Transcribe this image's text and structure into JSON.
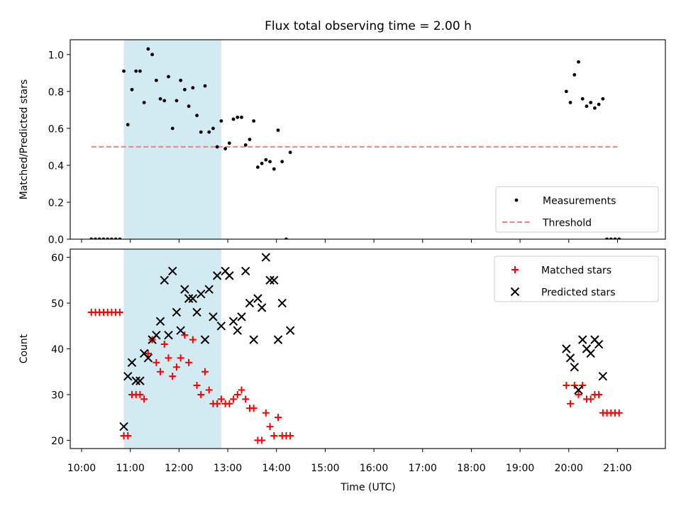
{
  "chart_data": {
    "title": "Flux total observing time = 2.00 h",
    "xlabel": "Time (UTC)",
    "x_ticks": [
      "10:00",
      "11:00",
      "12:00",
      "13:00",
      "14:00",
      "15:00",
      "16:00",
      "17:00",
      "18:00",
      "19:00",
      "20:00",
      "21:00"
    ],
    "xlim": [
      "09:46",
      "21:59"
    ],
    "highlight_span": [
      "10:52",
      "12:52"
    ],
    "colors": {
      "highlight": "#add8e6",
      "threshold": "#f08080",
      "matched": "#ff0000",
      "predicted": "#000000",
      "measurement": "#000000"
    },
    "panels": [
      {
        "type": "scatter",
        "ylabel": "Matched/Predicted stars",
        "ylim": [
          0,
          1.08
        ],
        "y_ticks": [
          "0.0",
          "0.2",
          "0.4",
          "0.6",
          "0.8",
          "1.0"
        ],
        "legend_position": "lower-right",
        "threshold": {
          "name": "Threshold",
          "y": 0.5,
          "x_range": [
            "10:12",
            "21:00"
          ]
        },
        "series": [
          {
            "name": "Measurements",
            "points": [
              [
                "10:12",
                0
              ],
              [
                "10:17",
                0
              ],
              [
                "10:22",
                0
              ],
              [
                "10:27",
                0
              ],
              [
                "10:32",
                0
              ],
              [
                "10:37",
                0
              ],
              [
                "10:42",
                0
              ],
              [
                "10:47",
                0
              ],
              [
                "10:52",
                0.91
              ],
              [
                "10:57",
                0.62
              ],
              [
                "11:02",
                0.81
              ],
              [
                "11:07",
                0.91
              ],
              [
                "11:12",
                0.91
              ],
              [
                "11:17",
                0.74
              ],
              [
                "11:22",
                1.03
              ],
              [
                "11:27",
                1.0
              ],
              [
                "11:32",
                0.86
              ],
              [
                "11:37",
                0.76
              ],
              [
                "11:42",
                0.75
              ],
              [
                "11:47",
                0.88
              ],
              [
                "11:52",
                0.6
              ],
              [
                "11:57",
                0.75
              ],
              [
                "12:02",
                0.86
              ],
              [
                "12:07",
                0.81
              ],
              [
                "12:12",
                0.72
              ],
              [
                "12:17",
                0.82
              ],
              [
                "12:22",
                0.67
              ],
              [
                "12:27",
                0.58
              ],
              [
                "12:32",
                0.83
              ],
              [
                "12:37",
                0.58
              ],
              [
                "12:42",
                0.6
              ],
              [
                "12:47",
                0.5
              ],
              [
                "12:52",
                0.64
              ],
              [
                "12:57",
                0.49
              ],
              [
                "13:02",
                0.52
              ],
              [
                "13:07",
                0.65
              ],
              [
                "13:12",
                0.66
              ],
              [
                "13:17",
                0.66
              ],
              [
                "13:22",
                0.51
              ],
              [
                "13:27",
                0.54
              ],
              [
                "13:32",
                0.64
              ],
              [
                "13:37",
                0.39
              ],
              [
                "13:42",
                0.41
              ],
              [
                "13:47",
                0.43
              ],
              [
                "13:52",
                0.42
              ],
              [
                "13:57",
                0.38
              ],
              [
                "14:02",
                0.59
              ],
              [
                "14:07",
                0.42
              ],
              [
                "14:12",
                0
              ],
              [
                "14:17",
                0.47
              ],
              [
                "19:57",
                0.8
              ],
              [
                "20:02",
                0.74
              ],
              [
                "20:07",
                0.89
              ],
              [
                "20:12",
                0.96
              ],
              [
                "20:17",
                0.76
              ],
              [
                "20:22",
                0.72
              ],
              [
                "20:27",
                0.74
              ],
              [
                "20:32",
                0.71
              ],
              [
                "20:37",
                0.73
              ],
              [
                "20:42",
                0.76
              ],
              [
                "20:47",
                0
              ],
              [
                "20:52",
                0
              ],
              [
                "20:57",
                0
              ],
              [
                "21:02",
                0
              ]
            ]
          }
        ]
      },
      {
        "type": "scatter",
        "ylabel": "Count",
        "ylim": [
          18.2,
          61.8
        ],
        "y_ticks": [
          "20",
          "30",
          "40",
          "50",
          "60"
        ],
        "legend_position": "upper-right",
        "series": [
          {
            "name": "Matched stars",
            "marker": "plus",
            "points": [
              [
                "10:12",
                48
              ],
              [
                "10:17",
                48
              ],
              [
                "10:22",
                48
              ],
              [
                "10:27",
                48
              ],
              [
                "10:32",
                48
              ],
              [
                "10:37",
                48
              ],
              [
                "10:42",
                48
              ],
              [
                "10:47",
                48
              ],
              [
                "10:52",
                21
              ],
              [
                "10:57",
                21
              ],
              [
                "11:02",
                30
              ],
              [
                "11:07",
                30
              ],
              [
                "11:12",
                30
              ],
              [
                "11:17",
                29
              ],
              [
                "11:22",
                39
              ],
              [
                "11:27",
                42
              ],
              [
                "11:32",
                37
              ],
              [
                "11:37",
                35
              ],
              [
                "11:42",
                41
              ],
              [
                "11:47",
                38
              ],
              [
                "11:52",
                34
              ],
              [
                "11:57",
                36
              ],
              [
                "12:02",
                38
              ],
              [
                "12:07",
                43
              ],
              [
                "12:12",
                37
              ],
              [
                "12:17",
                42
              ],
              [
                "12:22",
                32
              ],
              [
                "12:27",
                30
              ],
              [
                "12:32",
                35
              ],
              [
                "12:37",
                31
              ],
              [
                "12:42",
                28
              ],
              [
                "12:47",
                28
              ],
              [
                "12:52",
                29
              ],
              [
                "12:57",
                28
              ],
              [
                "13:02",
                28
              ],
              [
                "13:07",
                29
              ],
              [
                "13:12",
                30
              ],
              [
                "13:17",
                31
              ],
              [
                "13:22",
                29
              ],
              [
                "13:27",
                27
              ],
              [
                "13:32",
                27
              ],
              [
                "13:37",
                20
              ],
              [
                "13:42",
                20
              ],
              [
                "13:47",
                26
              ],
              [
                "13:52",
                23
              ],
              [
                "13:57",
                21
              ],
              [
                "14:02",
                25
              ],
              [
                "14:07",
                21
              ],
              [
                "14:12",
                21
              ],
              [
                "14:17",
                21
              ],
              [
                "19:57",
                32
              ],
              [
                "20:02",
                28
              ],
              [
                "20:07",
                32
              ],
              [
                "20:12",
                30
              ],
              [
                "20:17",
                32
              ],
              [
                "20:22",
                29
              ],
              [
                "20:27",
                29
              ],
              [
                "20:32",
                30
              ],
              [
                "20:37",
                30
              ],
              [
                "20:42",
                26
              ],
              [
                "20:47",
                26
              ],
              [
                "20:52",
                26
              ],
              [
                "20:57",
                26
              ],
              [
                "21:02",
                26
              ]
            ]
          },
          {
            "name": "Predicted stars",
            "marker": "x",
            "points": [
              [
                "10:52",
                23
              ],
              [
                "10:57",
                34
              ],
              [
                "11:02",
                37
              ],
              [
                "11:07",
                33
              ],
              [
                "11:12",
                33
              ],
              [
                "11:17",
                39
              ],
              [
                "11:22",
                38
              ],
              [
                "11:27",
                42
              ],
              [
                "11:32",
                43
              ],
              [
                "11:37",
                46
              ],
              [
                "11:42",
                55
              ],
              [
                "11:47",
                43
              ],
              [
                "11:52",
                57
              ],
              [
                "11:57",
                48
              ],
              [
                "12:02",
                44
              ],
              [
                "12:07",
                53
              ],
              [
                "12:12",
                51
              ],
              [
                "12:17",
                51
              ],
              [
                "12:22",
                48
              ],
              [
                "12:27",
                52
              ],
              [
                "12:32",
                42
              ],
              [
                "12:37",
                53
              ],
              [
                "12:42",
                47
              ],
              [
                "12:47",
                56
              ],
              [
                "12:52",
                45
              ],
              [
                "12:57",
                57
              ],
              [
                "13:02",
                56
              ],
              [
                "13:07",
                46
              ],
              [
                "13:12",
                44
              ],
              [
                "13:17",
                47
              ],
              [
                "13:22",
                57
              ],
              [
                "13:27",
                50
              ],
              [
                "13:32",
                42
              ],
              [
                "13:37",
                51
              ],
              [
                "13:42",
                49
              ],
              [
                "13:47",
                60
              ],
              [
                "13:52",
                55
              ],
              [
                "13:57",
                55
              ],
              [
                "14:02",
                42
              ],
              [
                "14:07",
                50
              ],
              [
                "14:17",
                44
              ],
              [
                "19:57",
                40
              ],
              [
                "20:02",
                38
              ],
              [
                "20:07",
                36
              ],
              [
                "20:12",
                31
              ],
              [
                "20:17",
                42
              ],
              [
                "20:22",
                40
              ],
              [
                "20:27",
                39
              ],
              [
                "20:32",
                42
              ],
              [
                "20:37",
                41
              ],
              [
                "20:42",
                34
              ]
            ]
          }
        ]
      }
    ]
  }
}
